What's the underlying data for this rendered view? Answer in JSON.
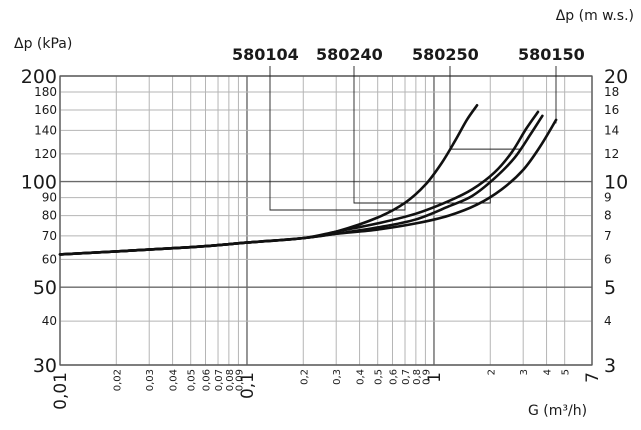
{
  "chart_data": {
    "type": "line",
    "title": "",
    "xlabel": "G (m³/h)",
    "ylabel_left": "Δp (kPa)",
    "ylabel_right": "Δp (m w.s.)",
    "x_scale": "log",
    "y_scale": "log",
    "xlim": [
      0.01,
      7
    ],
    "ylim": [
      30,
      200
    ],
    "grid": true,
    "x_ticks": [
      {
        "v": 0.01,
        "label": "0,01",
        "major": true
      },
      {
        "v": 0.02,
        "label": "0,02",
        "major": false
      },
      {
        "v": 0.03,
        "label": "0,03",
        "major": false
      },
      {
        "v": 0.04,
        "label": "0,04",
        "major": false
      },
      {
        "v": 0.05,
        "label": "0,05",
        "major": false
      },
      {
        "v": 0.06,
        "label": "0,06",
        "major": false
      },
      {
        "v": 0.07,
        "label": "0,07",
        "major": false
      },
      {
        "v": 0.08,
        "label": "0,08",
        "major": false
      },
      {
        "v": 0.09,
        "label": "0,09",
        "major": false
      },
      {
        "v": 0.1,
        "label": "0,1",
        "major": true
      },
      {
        "v": 0.2,
        "label": "0,2",
        "major": false
      },
      {
        "v": 0.3,
        "label": "0,3",
        "major": false
      },
      {
        "v": 0.4,
        "label": "0,4",
        "major": false
      },
      {
        "v": 0.5,
        "label": "0,5",
        "major": false
      },
      {
        "v": 0.6,
        "label": "0,6",
        "major": false
      },
      {
        "v": 0.7,
        "label": "0,7",
        "major": false
      },
      {
        "v": 0.8,
        "label": "0,8",
        "major": false
      },
      {
        "v": 0.9,
        "label": "0,9",
        "major": false
      },
      {
        "v": 1,
        "label": "1",
        "major": true
      },
      {
        "v": 2,
        "label": "2",
        "major": false
      },
      {
        "v": 3,
        "label": "3",
        "major": false
      },
      {
        "v": 4,
        "label": "4",
        "major": false
      },
      {
        "v": 5,
        "label": "5",
        "major": false
      },
      {
        "v": 7,
        "label": "7",
        "major": true
      }
    ],
    "y_ticks_left": [
      {
        "v": 200,
        "label": "200",
        "major": true
      },
      {
        "v": 180,
        "label": "180",
        "major": false
      },
      {
        "v": 160,
        "label": "160",
        "major": false
      },
      {
        "v": 140,
        "label": "140",
        "major": false
      },
      {
        "v": 120,
        "label": "120",
        "major": false
      },
      {
        "v": 100,
        "label": "100",
        "major": true
      },
      {
        "v": 90,
        "label": "90",
        "major": false
      },
      {
        "v": 80,
        "label": "80",
        "major": false
      },
      {
        "v": 70,
        "label": "70",
        "major": false
      },
      {
        "v": 60,
        "label": "60",
        "major": false
      },
      {
        "v": 50,
        "label": "50",
        "major": true
      },
      {
        "v": 40,
        "label": "40",
        "major": false
      },
      {
        "v": 30,
        "label": "30",
        "major": true
      }
    ],
    "y_ticks_right": [
      {
        "v": 200,
        "label": "20",
        "major": true
      },
      {
        "v": 180,
        "label": "18",
        "major": false
      },
      {
        "v": 160,
        "label": "16",
        "major": false
      },
      {
        "v": 140,
        "label": "14",
        "major": false
      },
      {
        "v": 120,
        "label": "12",
        "major": false
      },
      {
        "v": 100,
        "label": "10",
        "major": true
      },
      {
        "v": 90,
        "label": "9",
        "major": false
      },
      {
        "v": 80,
        "label": "8",
        "major": false
      },
      {
        "v": 70,
        "label": "7",
        "major": false
      },
      {
        "v": 60,
        "label": "6",
        "major": false
      },
      {
        "v": 50,
        "label": "5",
        "major": true
      },
      {
        "v": 40,
        "label": "4",
        "major": false
      },
      {
        "v": 30,
        "label": "3",
        "major": true
      }
    ],
    "series": [
      {
        "name": "580104",
        "x": [
          0.01,
          0.05,
          0.1,
          0.2,
          0.3,
          0.5,
          0.7,
          0.9,
          1.1,
          1.3,
          1.5,
          1.7
        ],
        "y": [
          62,
          65,
          67,
          69,
          72,
          79,
          87,
          98,
          113,
          131,
          150,
          165
        ],
        "leader_to": 0.7
      },
      {
        "name": "580240",
        "x": [
          0.01,
          0.05,
          0.1,
          0.2,
          0.3,
          0.5,
          0.8,
          1.2,
          1.6,
          2.1,
          2.6,
          3.1,
          3.6
        ],
        "y": [
          62,
          65,
          67,
          69,
          72,
          76,
          81,
          88,
          95,
          106,
          121,
          141,
          158
        ],
        "leader_to": 2.0
      },
      {
        "name": "580250",
        "x": [
          0.01,
          0.05,
          0.1,
          0.2,
          0.3,
          0.5,
          0.8,
          1.2,
          1.6,
          2.1,
          2.7,
          3.3,
          3.8
        ],
        "y": [
          62,
          65,
          67,
          69,
          71,
          74,
          78,
          85,
          91,
          102,
          117,
          137,
          154
        ],
        "leader_to": 2.9
      },
      {
        "name": "580150",
        "x": [
          0.01,
          0.05,
          0.1,
          0.2,
          0.3,
          0.5,
          0.8,
          1.2,
          1.7,
          2.3,
          3.0,
          3.7,
          4.5
        ],
        "y": [
          62,
          65,
          67,
          69,
          71,
          73,
          76,
          80,
          86,
          95,
          108,
          126,
          150
        ],
        "leader_to": 4.4
      }
    ]
  }
}
